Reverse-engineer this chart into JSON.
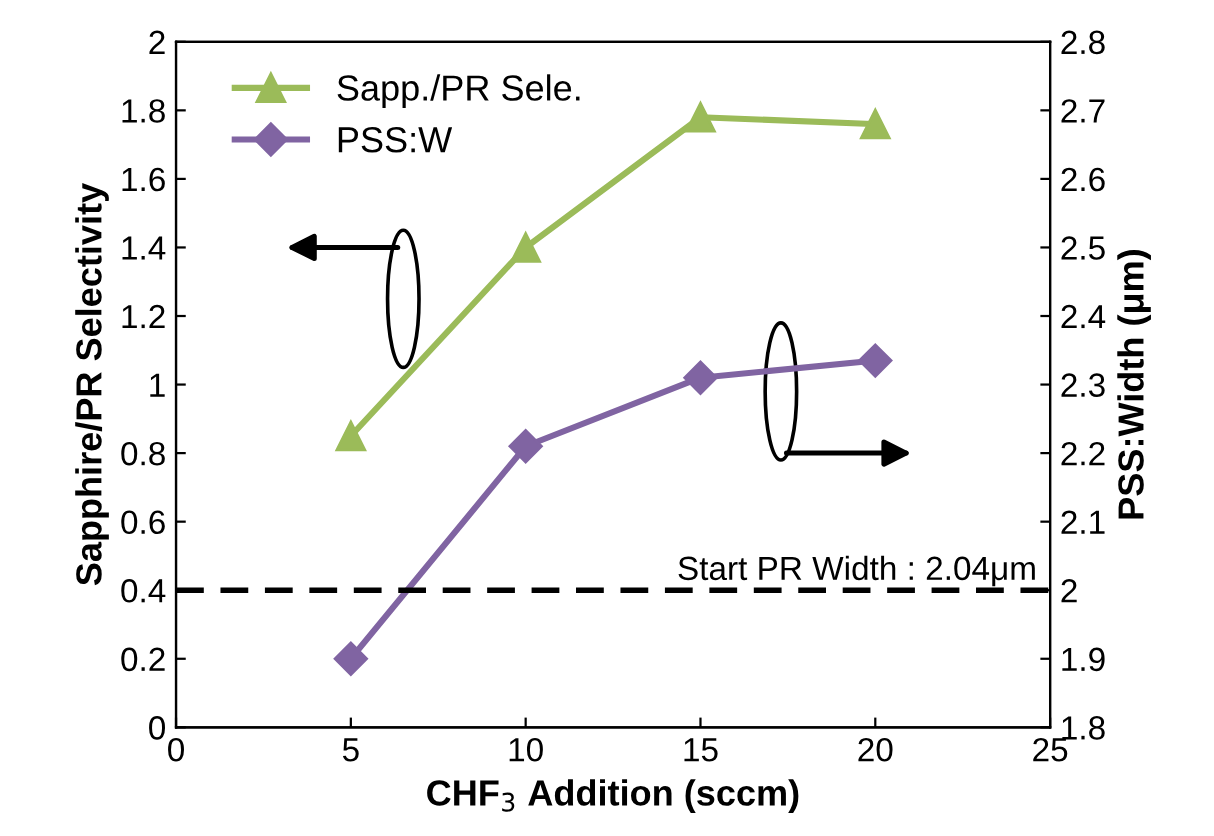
{
  "chart_data": {
    "type": "line",
    "xlabel": "CHF$_{3}$ Addition (sccm)",
    "ylabel": "Sapphire/PR Selectivity",
    "y2label": "PSS:Width (μm)",
    "x": [
      5,
      10,
      15,
      20
    ],
    "series": [
      {
        "name": "Sapp./PR Sele.",
        "color": "#9bbb59",
        "marker": "triangle",
        "values": [
          0.85,
          1.4,
          1.78,
          1.76
        ]
      },
      {
        "name": "PSS:W",
        "color": "#8064a2",
        "marker": "diamond",
        "axis": "y2",
        "values": [
          1.9,
          2.21,
          2.31,
          2.335
        ]
      }
    ],
    "xlim": [
      0,
      25
    ],
    "xticks": [
      0,
      5,
      10,
      15,
      20,
      25
    ],
    "ylim": [
      0,
      2
    ],
    "yticks": [
      0,
      0.2,
      0.4,
      0.6,
      0.8,
      1,
      1.2,
      1.4,
      1.6,
      1.8,
      2
    ],
    "y2lim": [
      1.8,
      2.8
    ],
    "y2ticks": [
      1.8,
      1.9,
      2,
      2.1,
      2.2,
      2.3,
      2.4,
      2.5,
      2.6,
      2.7,
      2.8
    ],
    "ref_lines": [
      {
        "axis": "y2",
        "value": 2,
        "color": "#000000",
        "line_style": "dashed"
      }
    ],
    "annotations": [
      "Start PR Width : 2.04μm"
    ],
    "legend": "top left",
    "grid": false
  }
}
